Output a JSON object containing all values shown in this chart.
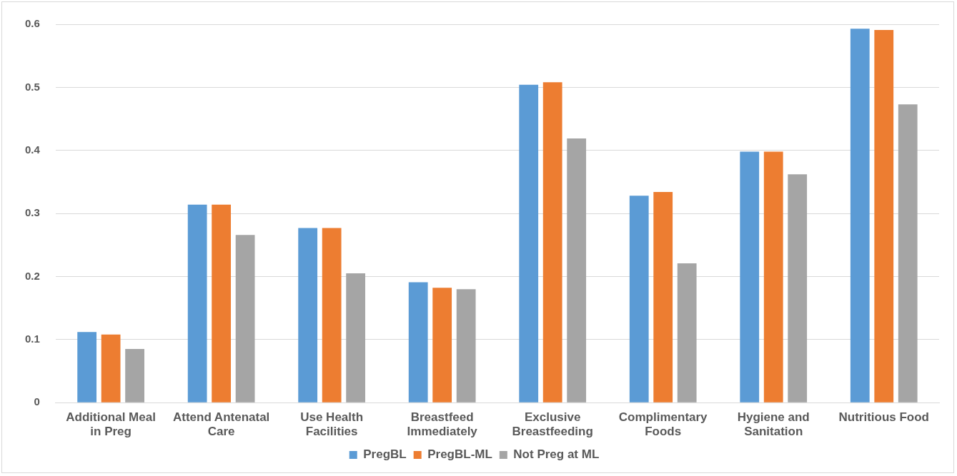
{
  "chart_data": {
    "type": "bar",
    "categories": [
      "Additional Meal in Preg",
      "Attend Antenatal Care",
      "Use Health Facilities",
      "Breastfeed Immediately",
      "Exclusive Breastfeeding",
      "Complimentary Foods",
      "Hygiene and Sanitation",
      "Nutritious Food"
    ],
    "series": [
      {
        "name": "PregBL",
        "color": "#5b9bd5",
        "values": [
          0.112,
          0.314,
          0.277,
          0.191,
          0.504,
          0.328,
          0.398,
          0.593
        ]
      },
      {
        "name": "PregBL-ML",
        "color": "#ed7d31",
        "values": [
          0.108,
          0.314,
          0.277,
          0.182,
          0.508,
          0.334,
          0.398,
          0.591
        ]
      },
      {
        "name": "Not Preg at ML",
        "color": "#a5a5a5",
        "values": [
          0.085,
          0.266,
          0.205,
          0.18,
          0.419,
          0.221,
          0.362,
          0.473
        ]
      }
    ],
    "ylim": [
      0,
      0.6
    ],
    "yticks": [
      0,
      0.1,
      0.2,
      0.3,
      0.4,
      0.5,
      0.6
    ],
    "grid": "y",
    "legend": "bottom"
  }
}
